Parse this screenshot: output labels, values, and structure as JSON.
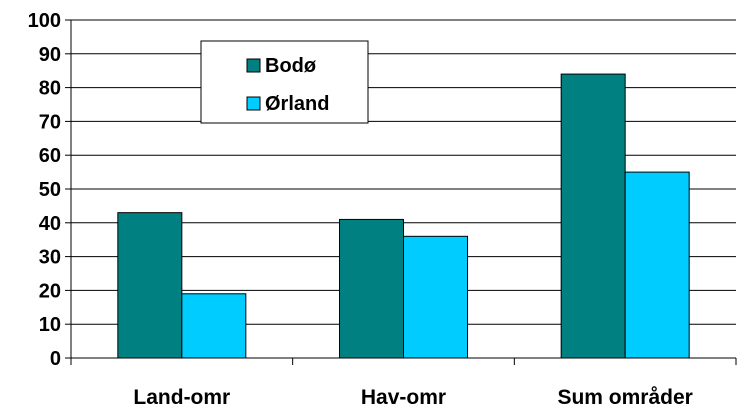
{
  "chart_data": {
    "type": "bar",
    "categories": [
      "Land-omr",
      "Hav-omr",
      "Sum områder"
    ],
    "series": [
      {
        "name": "Bodø",
        "values": [
          43,
          41,
          84
        ],
        "color": "#008080"
      },
      {
        "name": "Ørland",
        "values": [
          19,
          36,
          55
        ],
        "color": "#00CCFF"
      }
    ],
    "ylim": [
      0,
      100
    ],
    "yticks": [
      0,
      10,
      20,
      30,
      40,
      50,
      60,
      70,
      80,
      90,
      100
    ],
    "grid": true,
    "legend": "top-left inside plot area",
    "title": "",
    "xlabel": "",
    "ylabel": ""
  }
}
